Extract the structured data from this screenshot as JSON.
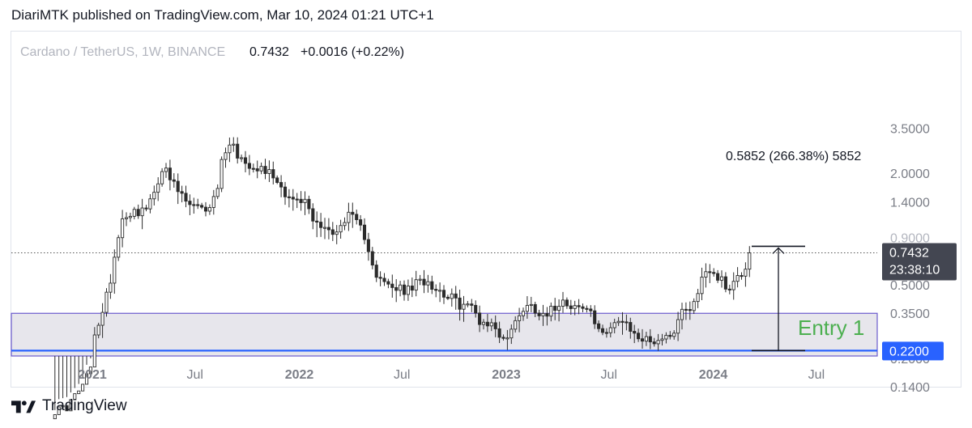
{
  "header": "DiariMTK published on TradingView.com, Mar 10, 2024 01:21 UTC+1",
  "footer": {
    "brand": "TradingView",
    "logo_icon": "tradingview-logo-icon"
  },
  "chart_data": {
    "type": "candlestick",
    "symbol_line": {
      "title": "Cardano / TetherUS, 1W, BINANCE",
      "price": "0.7432",
      "change": "+0.0016 (+0.22%)"
    },
    "scale": "log",
    "y_ticks": [
      "3.5000",
      "2.0000",
      "1.4000",
      "0.5000",
      "0.3500",
      "0.2000",
      "0.1400"
    ],
    "x_ticks": [
      {
        "label": "2021",
        "bold": true,
        "date": "2021-01-01"
      },
      {
        "label": "Jul",
        "bold": false,
        "date": "2021-07-01"
      },
      {
        "label": "2022",
        "bold": true,
        "date": "2022-01-01"
      },
      {
        "label": "Jul",
        "bold": false,
        "date": "2022-07-01"
      },
      {
        "label": "2023",
        "bold": true,
        "date": "2023-01-01"
      },
      {
        "label": "Jul",
        "bold": false,
        "date": "2023-07-01"
      },
      {
        "label": "2024",
        "bold": true,
        "date": "2024-01-01"
      },
      {
        "label": "Jul",
        "bold": false,
        "date": "2024-07-01"
      }
    ],
    "last_price": {
      "label": "0.7432",
      "countdown": "23:38:10",
      "value": 0.7432
    },
    "support": {
      "label": "0.2200",
      "value": 0.22,
      "color": "#2962ff"
    },
    "zone": {
      "top": 0.35,
      "bottom": 0.135,
      "color": "#6a5acd"
    },
    "measure": {
      "text": "0.5852 (266.38%) 5852",
      "from": 0.22,
      "to": 0.806,
      "date": "2024-04-25"
    },
    "annotation": {
      "text": "Entry 1",
      "color": "#4caf50"
    },
    "path": [
      [
        "2020-10-20",
        0.1
      ],
      [
        "2020-11-18",
        0.11
      ],
      [
        "2020-12-10",
        0.135
      ],
      [
        "2020-12-28",
        0.17
      ],
      [
        "2021-01-08",
        0.3
      ],
      [
        "2021-01-18",
        0.34
      ],
      [
        "2021-02-01",
        0.52
      ],
      [
        "2021-02-12",
        0.8
      ],
      [
        "2021-02-20",
        1.1
      ],
      [
        "2021-03-01",
        1.2
      ],
      [
        "2021-03-15",
        1.25
      ],
      [
        "2021-04-01",
        1.25
      ],
      [
        "2021-04-15",
        1.4
      ],
      [
        "2021-05-05",
        2.2
      ],
      [
        "2021-05-20",
        1.8
      ],
      [
        "2021-06-01",
        1.6
      ],
      [
        "2021-06-20",
        1.35
      ],
      [
        "2021-07-15",
        1.25
      ],
      [
        "2021-08-01",
        1.4
      ],
      [
        "2021-08-10",
        1.7
      ],
      [
        "2021-08-20",
        2.6
      ],
      [
        "2021-09-02",
        3.0
      ],
      [
        "2021-09-12",
        2.6
      ],
      [
        "2021-09-25",
        2.3
      ],
      [
        "2021-10-15",
        2.2
      ],
      [
        "2021-11-01",
        2.1
      ],
      [
        "2021-11-20",
        1.9
      ],
      [
        "2021-12-05",
        1.6
      ],
      [
        "2021-12-25",
        1.4
      ],
      [
        "2022-01-15",
        1.4
      ],
      [
        "2022-01-25",
        1.1
      ],
      [
        "2022-02-15",
        1.05
      ],
      [
        "2022-03-05",
        0.9
      ],
      [
        "2022-03-25",
        1.2
      ],
      [
        "2022-04-10",
        1.1
      ],
      [
        "2022-04-28",
        0.9
      ],
      [
        "2022-05-08",
        0.7
      ],
      [
        "2022-05-18",
        0.55
      ],
      [
        "2022-06-01",
        0.5
      ],
      [
        "2022-06-15",
        0.48
      ],
      [
        "2022-07-10",
        0.46
      ],
      [
        "2022-08-01",
        0.52
      ],
      [
        "2022-08-15",
        0.53
      ],
      [
        "2022-09-01",
        0.47
      ],
      [
        "2022-09-20",
        0.44
      ],
      [
        "2022-10-10",
        0.39
      ],
      [
        "2022-11-01",
        0.38
      ],
      [
        "2022-11-15",
        0.32
      ],
      [
        "2022-12-10",
        0.3
      ],
      [
        "2022-12-28",
        0.25
      ],
      [
        "2023-01-10",
        0.28
      ],
      [
        "2023-01-25",
        0.36
      ],
      [
        "2023-02-10",
        0.39
      ],
      [
        "2023-03-05",
        0.35
      ],
      [
        "2023-03-20",
        0.36
      ],
      [
        "2023-04-10",
        0.42
      ],
      [
        "2023-04-25",
        0.39
      ],
      [
        "2023-05-15",
        0.37
      ],
      [
        "2023-06-01",
        0.36
      ],
      [
        "2023-06-10",
        0.27
      ],
      [
        "2023-06-20",
        0.28
      ],
      [
        "2023-07-15",
        0.32
      ],
      [
        "2023-07-30",
        0.3
      ],
      [
        "2023-08-15",
        0.27
      ],
      [
        "2023-09-01",
        0.25
      ],
      [
        "2023-09-20",
        0.25
      ],
      [
        "2023-10-10",
        0.26
      ],
      [
        "2023-10-25",
        0.29
      ],
      [
        "2023-11-10",
        0.38
      ],
      [
        "2023-11-25",
        0.38
      ],
      [
        "2023-12-05",
        0.45
      ],
      [
        "2023-12-15",
        0.6
      ],
      [
        "2023-12-28",
        0.6
      ],
      [
        "2024-01-10",
        0.55
      ],
      [
        "2024-01-25",
        0.48
      ],
      [
        "2024-02-10",
        0.53
      ],
      [
        "2024-02-25",
        0.6
      ],
      [
        "2024-03-04",
        0.72
      ],
      [
        "2024-03-10",
        0.7432
      ]
    ]
  }
}
